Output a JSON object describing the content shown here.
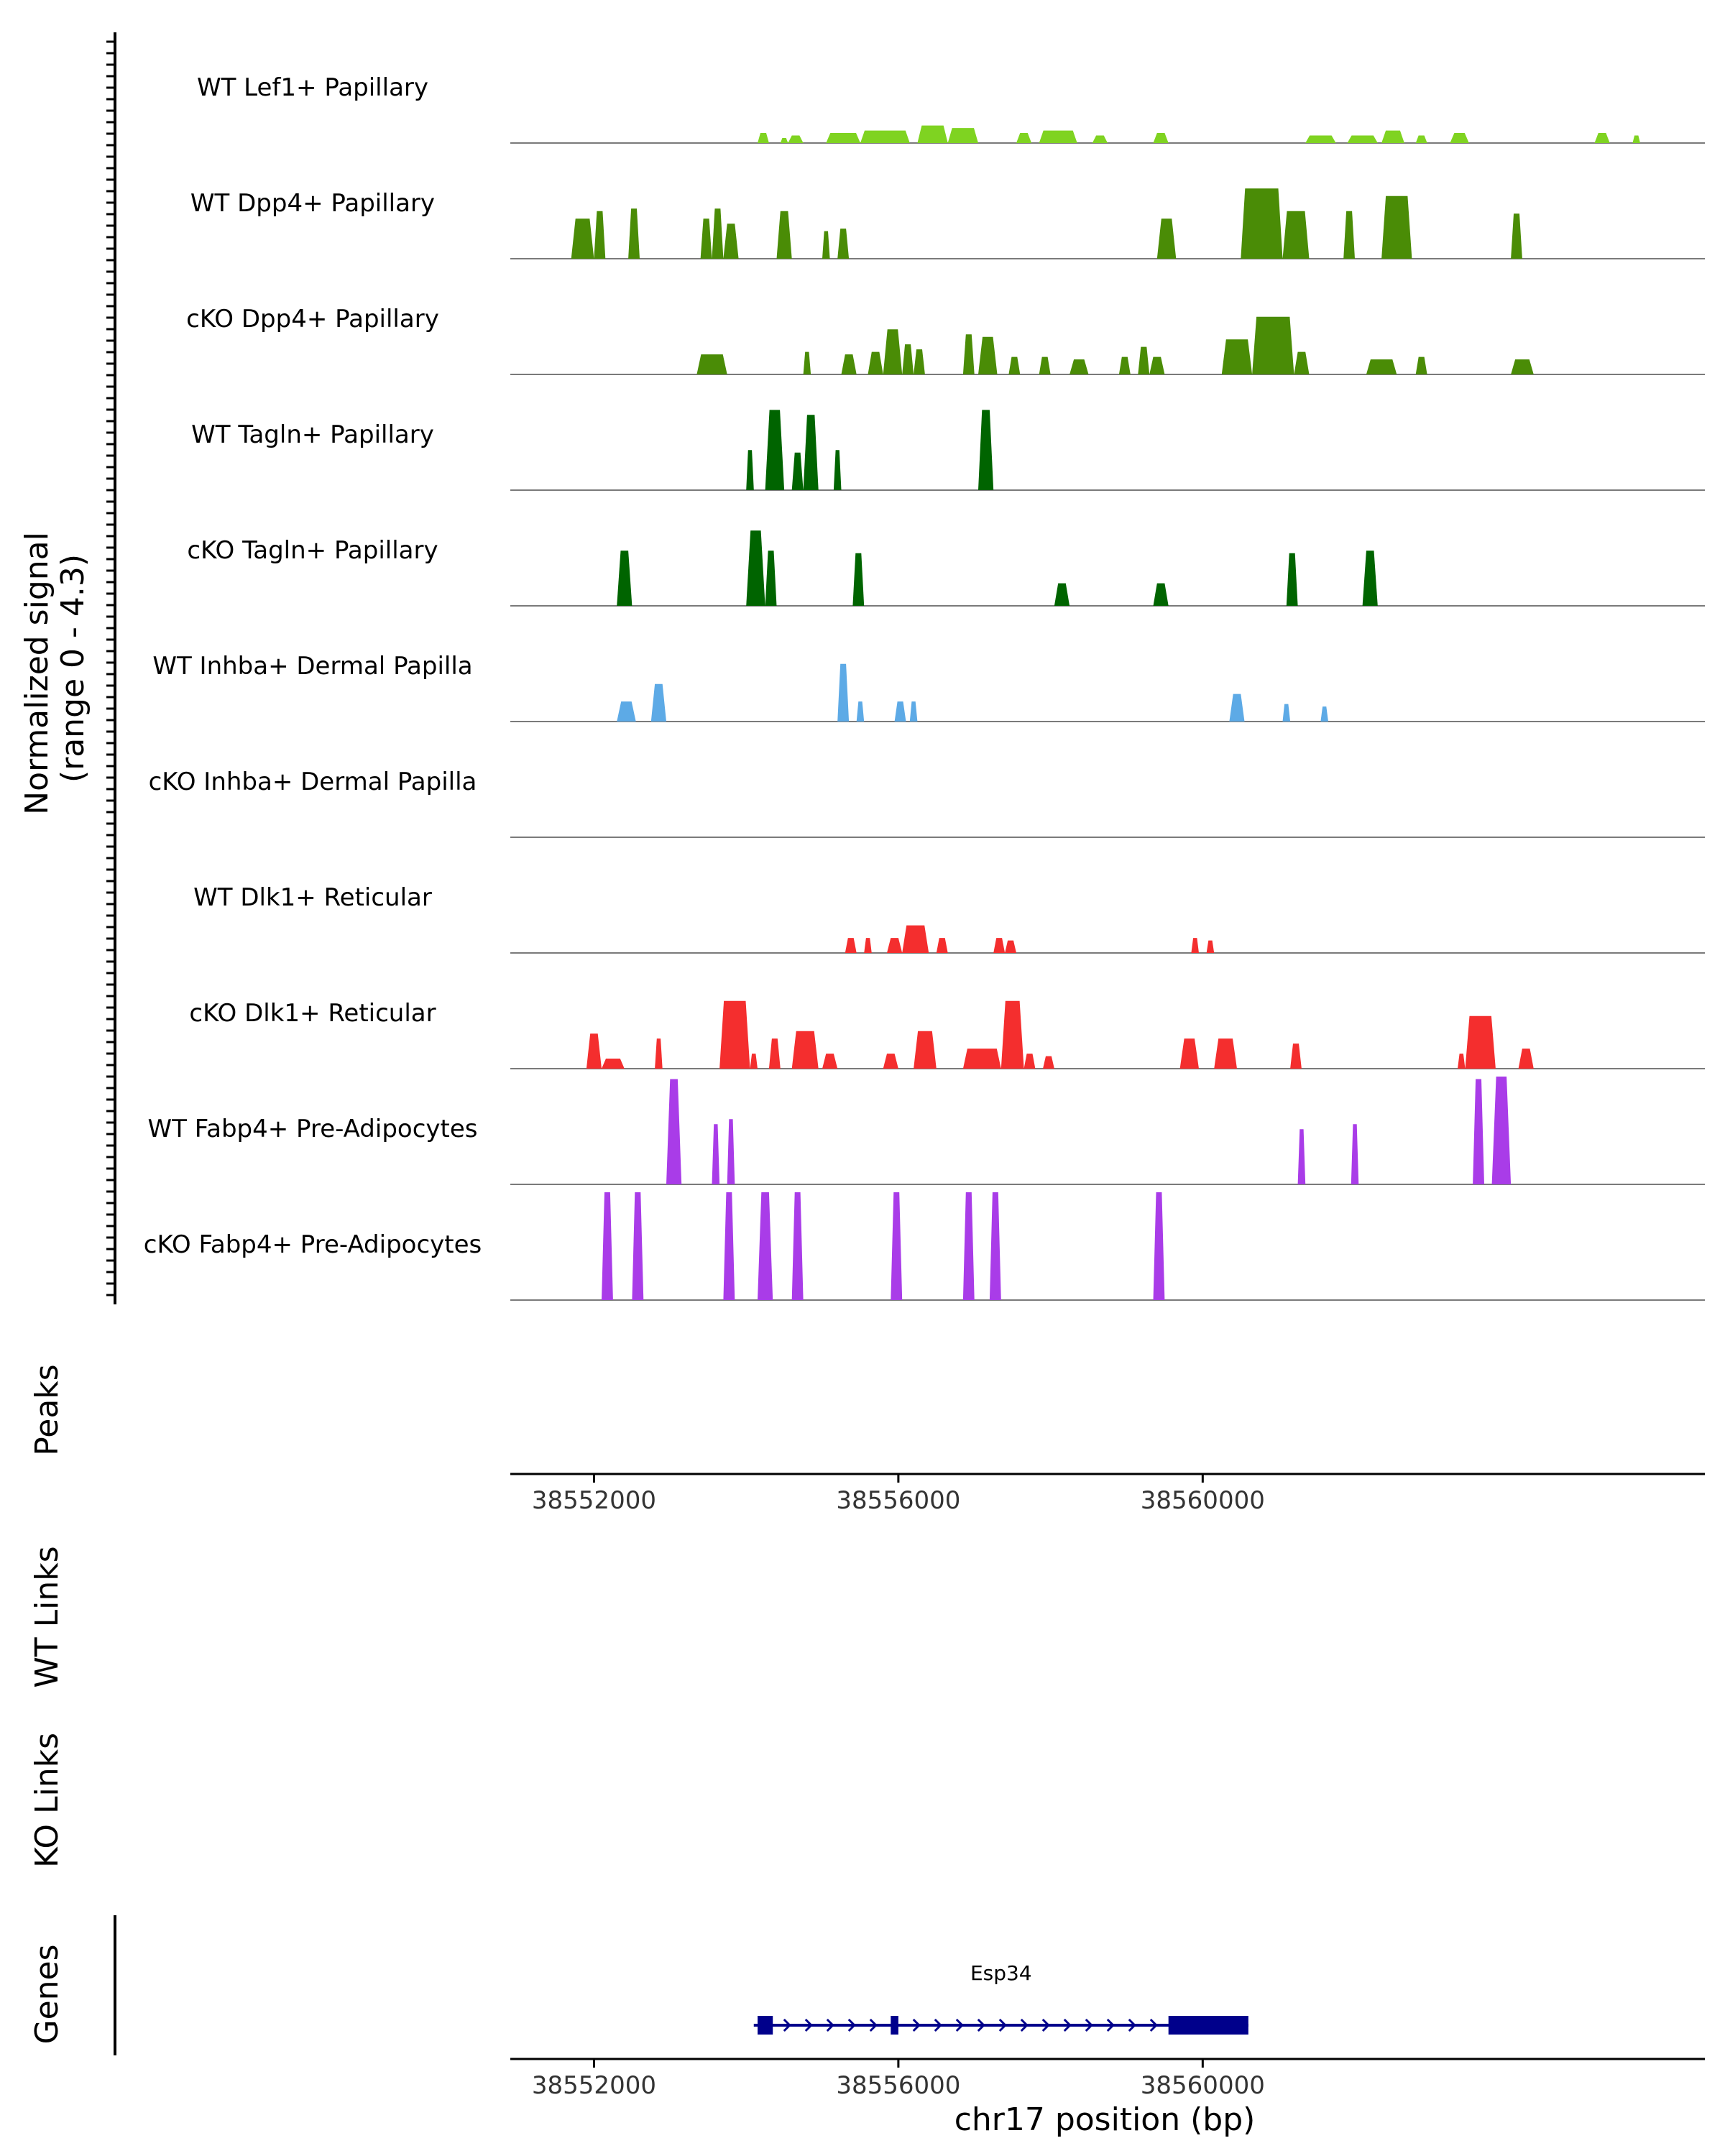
{
  "chart_data": {
    "type": "area",
    "title": "",
    "ylabel": [
      "Normalized signal",
      "(range 0 - 4.3)"
    ],
    "y_range": [
      0,
      4.3
    ],
    "x_range": [
      38550900,
      38566600
    ],
    "tracks": [
      {
        "name": "WT Lef1+ Papillary",
        "color": "#7FD321",
        "peaks": [
          [
            38554150,
            38554300,
            0.4
          ],
          [
            38554450,
            38554550,
            0.2
          ],
          [
            38554550,
            38554750,
            0.3
          ],
          [
            38555050,
            38555500,
            0.4
          ],
          [
            38555500,
            38556150,
            0.5
          ],
          [
            38556250,
            38556650,
            0.7
          ],
          [
            38556650,
            38557050,
            0.6
          ],
          [
            38557550,
            38557750,
            0.4
          ],
          [
            38557850,
            38558350,
            0.5
          ],
          [
            38558550,
            38558750,
            0.3
          ],
          [
            38559350,
            38559550,
            0.4
          ],
          [
            38561350,
            38561750,
            0.3
          ],
          [
            38561900,
            38562300,
            0.3
          ],
          [
            38562350,
            38562650,
            0.5
          ],
          [
            38562800,
            38562950,
            0.3
          ],
          [
            38563250,
            38563500,
            0.4
          ],
          [
            38565150,
            38565350,
            0.4
          ],
          [
            38565650,
            38565750,
            0.3
          ]
        ]
      },
      {
        "name": "WT Dpp4+ Papillary",
        "color": "#4A8C06",
        "peaks": [
          [
            38551700,
            38552000,
            1.6
          ],
          [
            38552000,
            38552150,
            1.9
          ],
          [
            38552450,
            38552600,
            2.0
          ],
          [
            38553400,
            38553550,
            1.6
          ],
          [
            38553550,
            38553700,
            2.0
          ],
          [
            38553700,
            38553900,
            1.4
          ],
          [
            38554400,
            38554600,
            1.9
          ],
          [
            38555000,
            38555100,
            1.1
          ],
          [
            38555200,
            38555350,
            1.2
          ],
          [
            38559400,
            38559650,
            1.6
          ],
          [
            38560500,
            38561050,
            2.8
          ],
          [
            38561050,
            38561400,
            1.9
          ],
          [
            38561850,
            38562000,
            1.9
          ],
          [
            38562350,
            38562750,
            2.5
          ],
          [
            38564050,
            38564200,
            1.8
          ]
        ]
      },
      {
        "name": "cKO Dpp4+ Papillary",
        "color": "#4A8C06",
        "peaks": [
          [
            38553350,
            38553750,
            0.8
          ],
          [
            38554750,
            38554850,
            0.9
          ],
          [
            38555250,
            38555450,
            0.8
          ],
          [
            38555600,
            38555800,
            0.9
          ],
          [
            38555800,
            38556050,
            1.8
          ],
          [
            38556050,
            38556200,
            1.2
          ],
          [
            38556200,
            38556350,
            1.0
          ],
          [
            38556850,
            38557000,
            1.6
          ],
          [
            38557050,
            38557300,
            1.5
          ],
          [
            38557450,
            38557600,
            0.7
          ],
          [
            38557850,
            38558000,
            0.7
          ],
          [
            38558250,
            38558500,
            0.6
          ],
          [
            38558900,
            38559050,
            0.7
          ],
          [
            38559150,
            38559300,
            1.1
          ],
          [
            38559300,
            38559500,
            0.7
          ],
          [
            38560250,
            38560650,
            1.4
          ],
          [
            38560650,
            38561200,
            2.3
          ],
          [
            38561200,
            38561400,
            0.9
          ],
          [
            38562150,
            38562550,
            0.6
          ],
          [
            38562800,
            38562950,
            0.7
          ],
          [
            38564050,
            38564350,
            0.6
          ]
        ]
      },
      {
        "name": "WT Tagln+ Papillary",
        "color": "#006400",
        "peaks": [
          [
            38554000,
            38554100,
            1.6
          ],
          [
            38554250,
            38554500,
            3.2
          ],
          [
            38554600,
            38554750,
            1.5
          ],
          [
            38554750,
            38554950,
            3.0
          ],
          [
            38555150,
            38555250,
            1.6
          ],
          [
            38557050,
            38557250,
            3.2
          ]
        ]
      },
      {
        "name": "cKO Tagln+ Papillary",
        "color": "#006400",
        "peaks": [
          [
            38552300,
            38552500,
            2.2
          ],
          [
            38554000,
            38554250,
            3.0
          ],
          [
            38554250,
            38554400,
            2.2
          ],
          [
            38555400,
            38555550,
            2.1
          ],
          [
            38558050,
            38558250,
            0.9
          ],
          [
            38559350,
            38559550,
            0.9
          ],
          [
            38561100,
            38561250,
            2.1
          ],
          [
            38562100,
            38562300,
            2.2
          ]
        ]
      },
      {
        "name": "WT Inhba+ Dermal Papilla",
        "color": "#5DAAE6",
        "peaks": [
          [
            38552300,
            38552550,
            0.8
          ],
          [
            38552750,
            38552950,
            1.5
          ],
          [
            38555200,
            38555350,
            2.3
          ],
          [
            38555450,
            38555550,
            0.8
          ],
          [
            38555950,
            38556100,
            0.8
          ],
          [
            38556150,
            38556250,
            0.8
          ],
          [
            38560350,
            38560550,
            1.1
          ],
          [
            38561050,
            38561150,
            0.7
          ],
          [
            38561550,
            38561650,
            0.6
          ]
        ]
      },
      {
        "name": "cKO Inhba+ Dermal Papilla",
        "color": "#5DAAE6",
        "peaks": []
      },
      {
        "name": "WT Dlk1+ Reticular",
        "color": "#F42E2E",
        "peaks": [
          [
            38555300,
            38555450,
            0.6
          ],
          [
            38555550,
            38555650,
            0.6
          ],
          [
            38555850,
            38556050,
            0.6
          ],
          [
            38556050,
            38556400,
            1.1
          ],
          [
            38556500,
            38556650,
            0.6
          ],
          [
            38557250,
            38557400,
            0.6
          ],
          [
            38557400,
            38557550,
            0.5
          ],
          [
            38559850,
            38559950,
            0.6
          ],
          [
            38560050,
            38560150,
            0.5
          ]
        ]
      },
      {
        "name": "cKO Dlk1+ Reticular",
        "color": "#F42E2E",
        "peaks": [
          [
            38551900,
            38552100,
            1.4
          ],
          [
            38552100,
            38552400,
            0.4
          ],
          [
            38552800,
            38552900,
            1.2
          ],
          [
            38553650,
            38554050,
            2.7
          ],
          [
            38554050,
            38554150,
            0.6
          ],
          [
            38554300,
            38554450,
            1.2
          ],
          [
            38554600,
            38554950,
            1.5
          ],
          [
            38555000,
            38555200,
            0.6
          ],
          [
            38555800,
            38556000,
            0.6
          ],
          [
            38556200,
            38556500,
            1.5
          ],
          [
            38556850,
            38557350,
            0.8
          ],
          [
            38557350,
            38557650,
            2.7
          ],
          [
            38557650,
            38557800,
            0.6
          ],
          [
            38557900,
            38558050,
            0.5
          ],
          [
            38559700,
            38559950,
            1.2
          ],
          [
            38560150,
            38560450,
            1.2
          ],
          [
            38561150,
            38561300,
            1.0
          ],
          [
            38563350,
            38563450,
            0.6
          ],
          [
            38563450,
            38563850,
            2.1
          ],
          [
            38564150,
            38564350,
            0.8
          ]
        ]
      },
      {
        "name": "WT Fabp4+ Pre-Adipocytes",
        "color": "#A93CE8",
        "peaks": [
          [
            38552950,
            38553150,
            4.2
          ],
          [
            38553550,
            38553650,
            2.4
          ],
          [
            38553750,
            38553850,
            2.6
          ],
          [
            38561250,
            38561350,
            2.2
          ],
          [
            38561950,
            38562050,
            2.4
          ],
          [
            38563550,
            38563700,
            4.2
          ],
          [
            38563800,
            38564050,
            4.3
          ]
        ]
      },
      {
        "name": "cKO Fabp4+ Pre-Adipocytes",
        "color": "#A93CE8",
        "peaks": [
          [
            38552100,
            38552250,
            4.3
          ],
          [
            38552500,
            38552650,
            4.3
          ],
          [
            38553700,
            38553850,
            4.3
          ],
          [
            38554150,
            38554350,
            4.3
          ],
          [
            38554600,
            38554750,
            4.3
          ],
          [
            38555900,
            38556050,
            4.3
          ],
          [
            38556850,
            38557000,
            4.3
          ],
          [
            38557200,
            38557350,
            4.3
          ],
          [
            38559350,
            38559500,
            4.3
          ]
        ]
      }
    ],
    "empty_panels": [
      "Peaks",
      "WT Links",
      "KO Links"
    ],
    "x_ticks": [
      "38552000",
      "38556000",
      "38560000"
    ],
    "x_tick_values": [
      38552000,
      38556000,
      38560000
    ],
    "xlabel": "chr17 position (bp)",
    "genes_label": "Genes",
    "gene": {
      "name": "Esp34",
      "color": "#00008B",
      "start": 38554100,
      "end": 38560600,
      "exons": [
        [
          38554150,
          38554350
        ],
        [
          38555900,
          38556000
        ],
        [
          38559550,
          38560600
        ]
      ]
    }
  }
}
